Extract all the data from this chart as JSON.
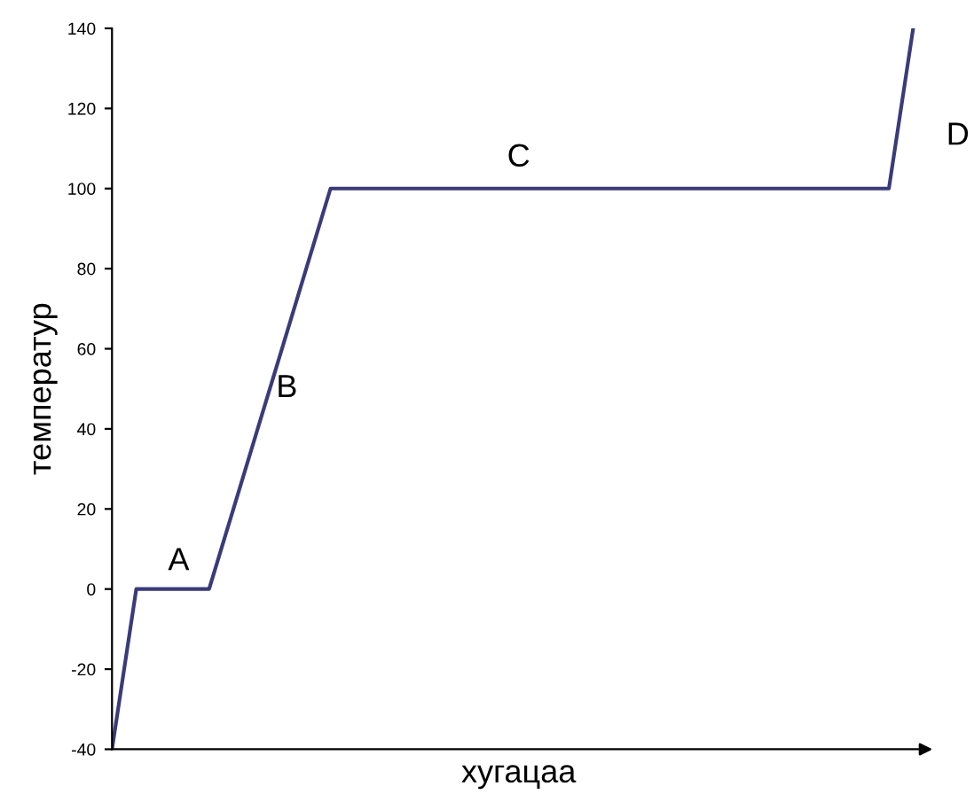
{
  "chart_data": {
    "type": "line",
    "xlabel": "хугацаа",
    "ylabel": "температур",
    "categories": [
      null,
      null,
      null,
      null,
      null,
      null,
      null,
      null,
      null,
      null,
      null,
      null,
      null,
      null,
      null,
      null,
      null,
      null,
      null,
      null,
      null,
      null,
      null,
      null,
      null,
      null,
      null,
      null,
      null,
      null,
      null,
      null,
      null,
      null
    ],
    "series": [
      {
        "color": "#3b3b7a",
        "values": [
          -40,
          0,
          0,
          0,
          0,
          20,
          40,
          60,
          80,
          100,
          100,
          100,
          100,
          100,
          100,
          100,
          100,
          100,
          100,
          100,
          100,
          100,
          100,
          100,
          100,
          100,
          100,
          100,
          100,
          100,
          100,
          100,
          100,
          140
        ]
      }
    ],
    "ylim": [
      -40,
      140
    ],
    "yticks": [
      -40,
      -20,
      0,
      20,
      40,
      60,
      80,
      100,
      120,
      140
    ],
    "tick_labels": "y",
    "grid": false,
    "annotations": [
      "A",
      "B",
      "C",
      "D"
    ]
  }
}
